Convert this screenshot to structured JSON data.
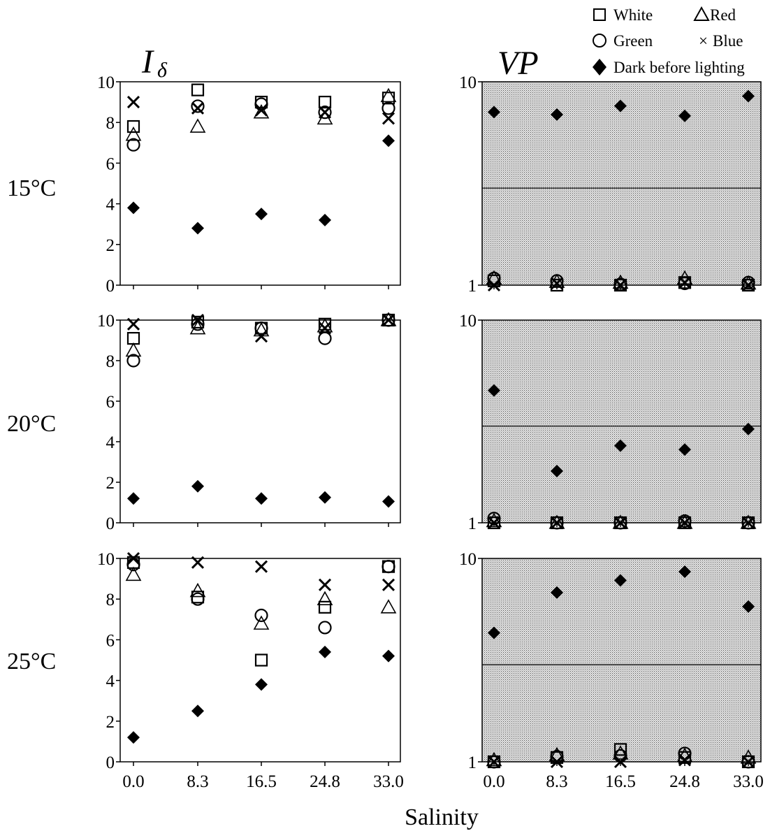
{
  "titles": {
    "left": "I",
    "left_sub": "δ",
    "right": "VP"
  },
  "xlabel": "Salinity",
  "legend": [
    {
      "key": "white",
      "label": "White",
      "marker": "square"
    },
    {
      "key": "red",
      "label": "Red",
      "marker": "triangle"
    },
    {
      "key": "green",
      "label": "Green",
      "marker": "circle"
    },
    {
      "key": "blue",
      "label": "Blue",
      "marker": "cross"
    },
    {
      "key": "dark",
      "label": "Dark before lighting",
      "marker": "diamond"
    }
  ],
  "rows": [
    {
      "label": "15°C"
    },
    {
      "label": "20°C"
    },
    {
      "label": "25°C"
    }
  ],
  "colors": {
    "shade": "#c8c8c8",
    "marker": "#000000"
  },
  "chart_data": [
    {
      "type": "scatter",
      "panel": "I-delta 15°C",
      "ylim": [
        0,
        10
      ],
      "yscale": "linear",
      "x": [
        "0.0",
        "8.3",
        "16.5",
        "24.8",
        "33.0"
      ],
      "xticks_shown": false,
      "yticks": [
        "0",
        "2",
        "4",
        "6",
        "8",
        "10"
      ],
      "series": [
        {
          "name": "White",
          "values": [
            7.8,
            9.6,
            9.0,
            9.0,
            9.2
          ]
        },
        {
          "name": "Red",
          "values": [
            7.4,
            7.8,
            8.5,
            8.2,
            9.3
          ]
        },
        {
          "name": "Green",
          "values": [
            6.9,
            8.8,
            8.9,
            8.5,
            8.7
          ]
        },
        {
          "name": "Blue",
          "values": [
            9.0,
            8.7,
            8.6,
            8.5,
            8.2
          ]
        },
        {
          "name": "Dark before lighting",
          "values": [
            3.8,
            2.8,
            3.5,
            3.2,
            7.1
          ]
        }
      ]
    },
    {
      "type": "scatter",
      "panel": "VP 15°C",
      "ylim": [
        1,
        10
      ],
      "yscale": "log",
      "shaded": true,
      "threshold": 3,
      "x": [
        "0.0",
        "8.3",
        "16.5",
        "24.8",
        "33.0"
      ],
      "xticks_shown": false,
      "yticks": [
        "1",
        "10"
      ],
      "series": [
        {
          "name": "White",
          "values": [
            1.05,
            1.0,
            1.0,
            1.03,
            1.0
          ]
        },
        {
          "name": "Red",
          "values": [
            1.08,
            1.04,
            1.03,
            1.08,
            1.02
          ]
        },
        {
          "name": "Green",
          "values": [
            1.08,
            1.05,
            1.01,
            1.02,
            1.03
          ]
        },
        {
          "name": "Blue",
          "values": [
            1.0,
            1.02,
            1.0,
            1.03,
            1.0
          ]
        },
        {
          "name": "Dark before lighting",
          "values": [
            7.1,
            6.9,
            7.6,
            6.8,
            8.5
          ]
        }
      ]
    },
    {
      "type": "scatter",
      "panel": "I-delta 20°C",
      "ylim": [
        0,
        10
      ],
      "yscale": "linear",
      "x": [
        "0.0",
        "8.3",
        "16.5",
        "24.8",
        "33.0"
      ],
      "xticks_shown": false,
      "yticks": [
        "0",
        "2",
        "4",
        "6",
        "8",
        "10"
      ],
      "series": [
        {
          "name": "White",
          "values": [
            9.1,
            9.9,
            9.6,
            9.8,
            10.0
          ]
        },
        {
          "name": "Red",
          "values": [
            8.5,
            9.6,
            9.5,
            9.7,
            10.0
          ]
        },
        {
          "name": "Green",
          "values": [
            8.0,
            9.8,
            9.6,
            9.1,
            10.0
          ]
        },
        {
          "name": "Blue",
          "values": [
            9.8,
            10.0,
            9.2,
            9.6,
            10.0
          ]
        },
        {
          "name": "Dark before lighting",
          "values": [
            1.2,
            1.8,
            1.2,
            1.25,
            1.05
          ]
        }
      ]
    },
    {
      "type": "scatter",
      "panel": "VP 20°C",
      "ylim": [
        1,
        10
      ],
      "yscale": "log",
      "shaded": true,
      "threshold": 3,
      "x": [
        "0.0",
        "8.3",
        "16.5",
        "24.8",
        "33.0"
      ],
      "xticks_shown": false,
      "yticks": [
        "1",
        "10"
      ],
      "series": [
        {
          "name": "White",
          "values": [
            1.0,
            1.0,
            1.0,
            1.0,
            1.0
          ]
        },
        {
          "name": "Red",
          "values": [
            1.02,
            1.0,
            1.0,
            1.0,
            1.0
          ]
        },
        {
          "name": "Green",
          "values": [
            1.05,
            1.0,
            1.0,
            1.02,
            1.0
          ]
        },
        {
          "name": "Blue",
          "values": [
            1.0,
            1.0,
            1.0,
            1.0,
            1.0
          ]
        },
        {
          "name": "Dark before lighting",
          "values": [
            4.5,
            1.8,
            2.4,
            2.3,
            2.9
          ]
        }
      ]
    },
    {
      "type": "scatter",
      "panel": "I-delta 25°C",
      "ylim": [
        0,
        10
      ],
      "yscale": "linear",
      "x": [
        "0.0",
        "8.3",
        "16.5",
        "24.8",
        "33.0"
      ],
      "xticks_shown": true,
      "yticks": [
        "0",
        "2",
        "4",
        "6",
        "8",
        "10"
      ],
      "series": [
        {
          "name": "White",
          "values": [
            9.8,
            8.1,
            5.0,
            7.6,
            9.6
          ]
        },
        {
          "name": "Red",
          "values": [
            9.2,
            8.4,
            6.8,
            8.0,
            7.6
          ]
        },
        {
          "name": "Green",
          "values": [
            9.7,
            8.0,
            7.2,
            6.6,
            9.6
          ]
        },
        {
          "name": "Blue",
          "values": [
            10.0,
            9.8,
            9.6,
            8.7,
            8.7
          ]
        },
        {
          "name": "Dark before lighting",
          "values": [
            1.2,
            2.5,
            3.8,
            5.4,
            5.2
          ]
        }
      ]
    },
    {
      "type": "scatter",
      "panel": "VP 25°C",
      "ylim": [
        1,
        10
      ],
      "yscale": "log",
      "shaded": true,
      "threshold": 3,
      "x": [
        "0.0",
        "8.3",
        "16.5",
        "24.8",
        "33.0"
      ],
      "xticks_shown": true,
      "yticks": [
        "1",
        "10"
      ],
      "series": [
        {
          "name": "White",
          "values": [
            1.0,
            1.05,
            1.15,
            1.05,
            1.0
          ]
        },
        {
          "name": "Red",
          "values": [
            1.02,
            1.08,
            1.1,
            1.07,
            1.05
          ]
        },
        {
          "name": "Green",
          "values": [
            1.0,
            1.06,
            1.07,
            1.1,
            1.0
          ]
        },
        {
          "name": "Blue",
          "values": [
            1.0,
            1.0,
            1.0,
            1.02,
            1.0
          ]
        },
        {
          "name": "Dark before lighting",
          "values": [
            4.3,
            6.8,
            7.8,
            8.6,
            5.8
          ]
        }
      ]
    }
  ]
}
